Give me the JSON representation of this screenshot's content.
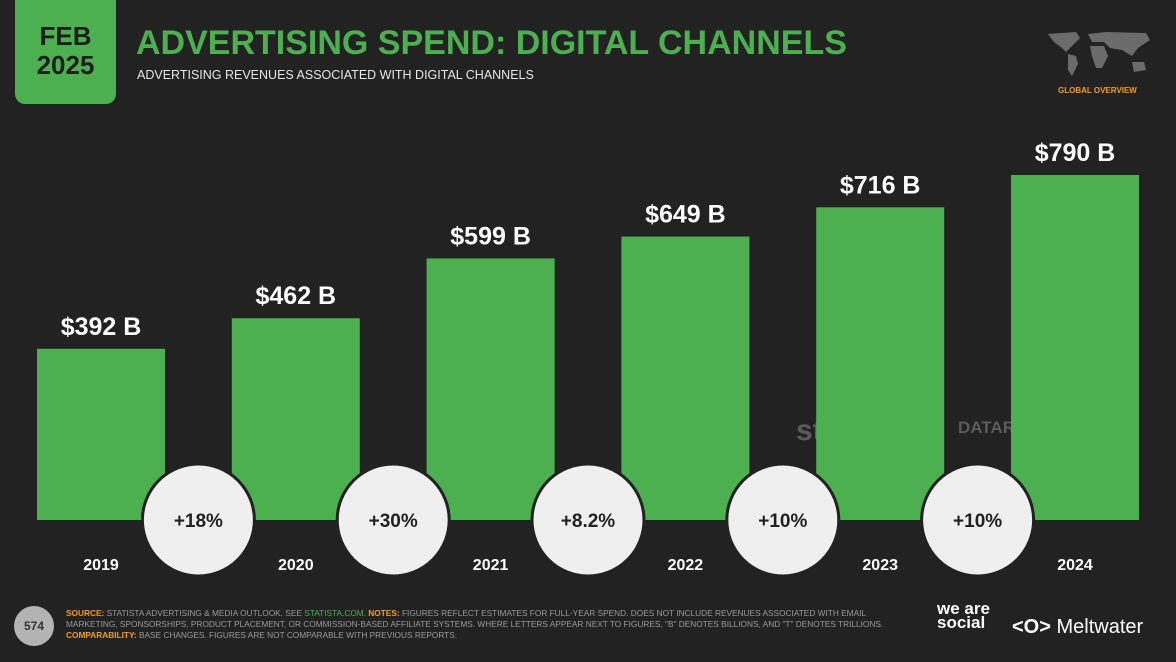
{
  "header": {
    "month": "FEB",
    "year": "2025",
    "title": "ADVERTISING SPEND: DIGITAL CHANNELS",
    "subtitle": "ADVERTISING REVENUES ASSOCIATED WITH DIGITAL CHANNELS",
    "region": "GLOBAL OVERVIEW"
  },
  "chart_data": {
    "type": "bar",
    "title": "ADVERTISING SPEND: DIGITAL CHANNELS",
    "categories": [
      "2019",
      "2020",
      "2021",
      "2022",
      "2023",
      "2024"
    ],
    "values": [
      392,
      462,
      599,
      649,
      716,
      790
    ],
    "value_labels": [
      "$392 B",
      "$462 B",
      "$599 B",
      "$649 B",
      "$716 B",
      "$790 B"
    ],
    "growth_labels": [
      "+18%",
      "+30%",
      "+8.2%",
      "+10%",
      "+10%"
    ],
    "ylim": [
      0,
      790
    ],
    "bar_color": "#4caf50"
  },
  "watermarks": {
    "statista": "statista",
    "datareportal": "DATAREPORTAL"
  },
  "footer": {
    "page": "574",
    "source_label": "SOURCE:",
    "source_text": " STATISTA ADVERTISING & MEDIA OUTLOOK. SEE ",
    "source_link": "STATISTA.COM.",
    "notes_label": " NOTES:",
    "notes_text": " FIGURES REFLECT ESTIMATES FOR FULL-YEAR SPEND. DOES NOT INCLUDE REVENUES ASSOCIATED WITH EMAIL MARKETING, SPONSORSHIPS, PRODUCT PLACEMENT, OR COMMISSION-BASED AFFILIATE SYSTEMS. WHERE LETTERS APPEAR NEXT TO FIGURES, \"B\" DENOTES BILLIONS, AND \"T\" DENOTES TRILLIONS.",
    "comp_label": " COMPARABILITY:",
    "comp_text": " BASE CHANGES. FIGURES ARE NOT COMPARABLE WITH PREVIOUS REPORTS.",
    "brand1": "we are social",
    "brand2": "Meltwater"
  }
}
